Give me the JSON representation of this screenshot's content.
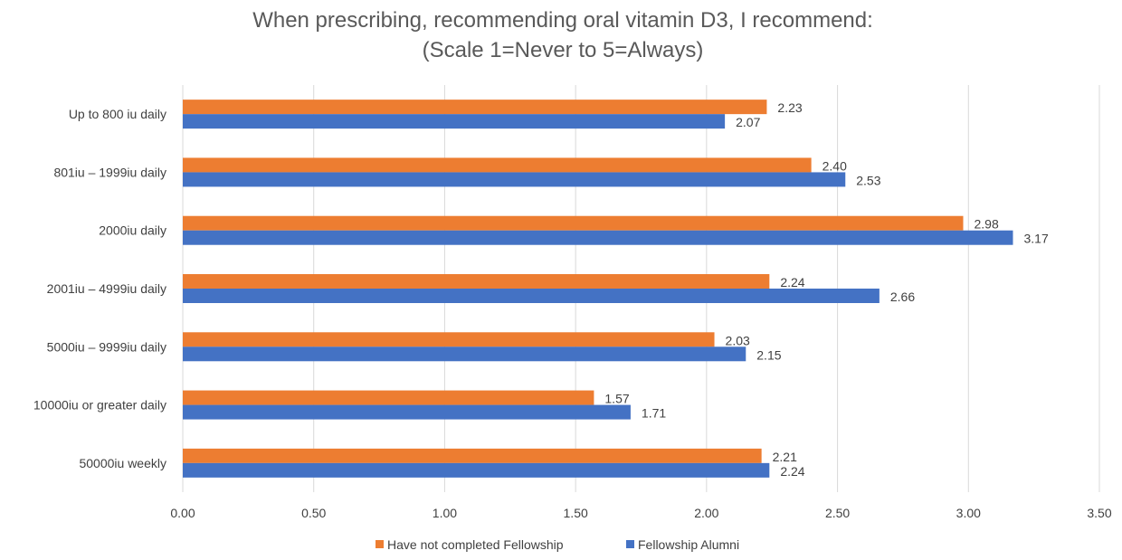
{
  "chart_data": {
    "type": "bar",
    "orientation": "horizontal",
    "title": "When prescribing, recommending oral vitamin D3, I recommend:",
    "subtitle": "(Scale 1=Never to 5=Always)",
    "categories": [
      "Up to 800 iu daily",
      "801iu – 1999iu daily",
      "2000iu daily",
      "2001iu – 4999iu daily",
      "5000iu – 9999iu daily",
      "10000iu or greater daily",
      "50000iu weekly"
    ],
    "series": [
      {
        "name": "Have not completed Fellowship",
        "color": "#ED7D31",
        "values": [
          2.23,
          2.4,
          2.98,
          2.24,
          2.03,
          1.57,
          2.21
        ]
      },
      {
        "name": "Fellowship Alumni",
        "color": "#4472C4",
        "values": [
          2.07,
          2.53,
          3.17,
          2.66,
          2.15,
          1.71,
          2.24
        ]
      }
    ],
    "xlim": [
      0,
      3.5
    ],
    "xticks": [
      "0.00",
      "0.50",
      "1.00",
      "1.50",
      "2.00",
      "2.50",
      "3.00",
      "3.50"
    ],
    "grid": true,
    "legend_position": "bottom"
  }
}
